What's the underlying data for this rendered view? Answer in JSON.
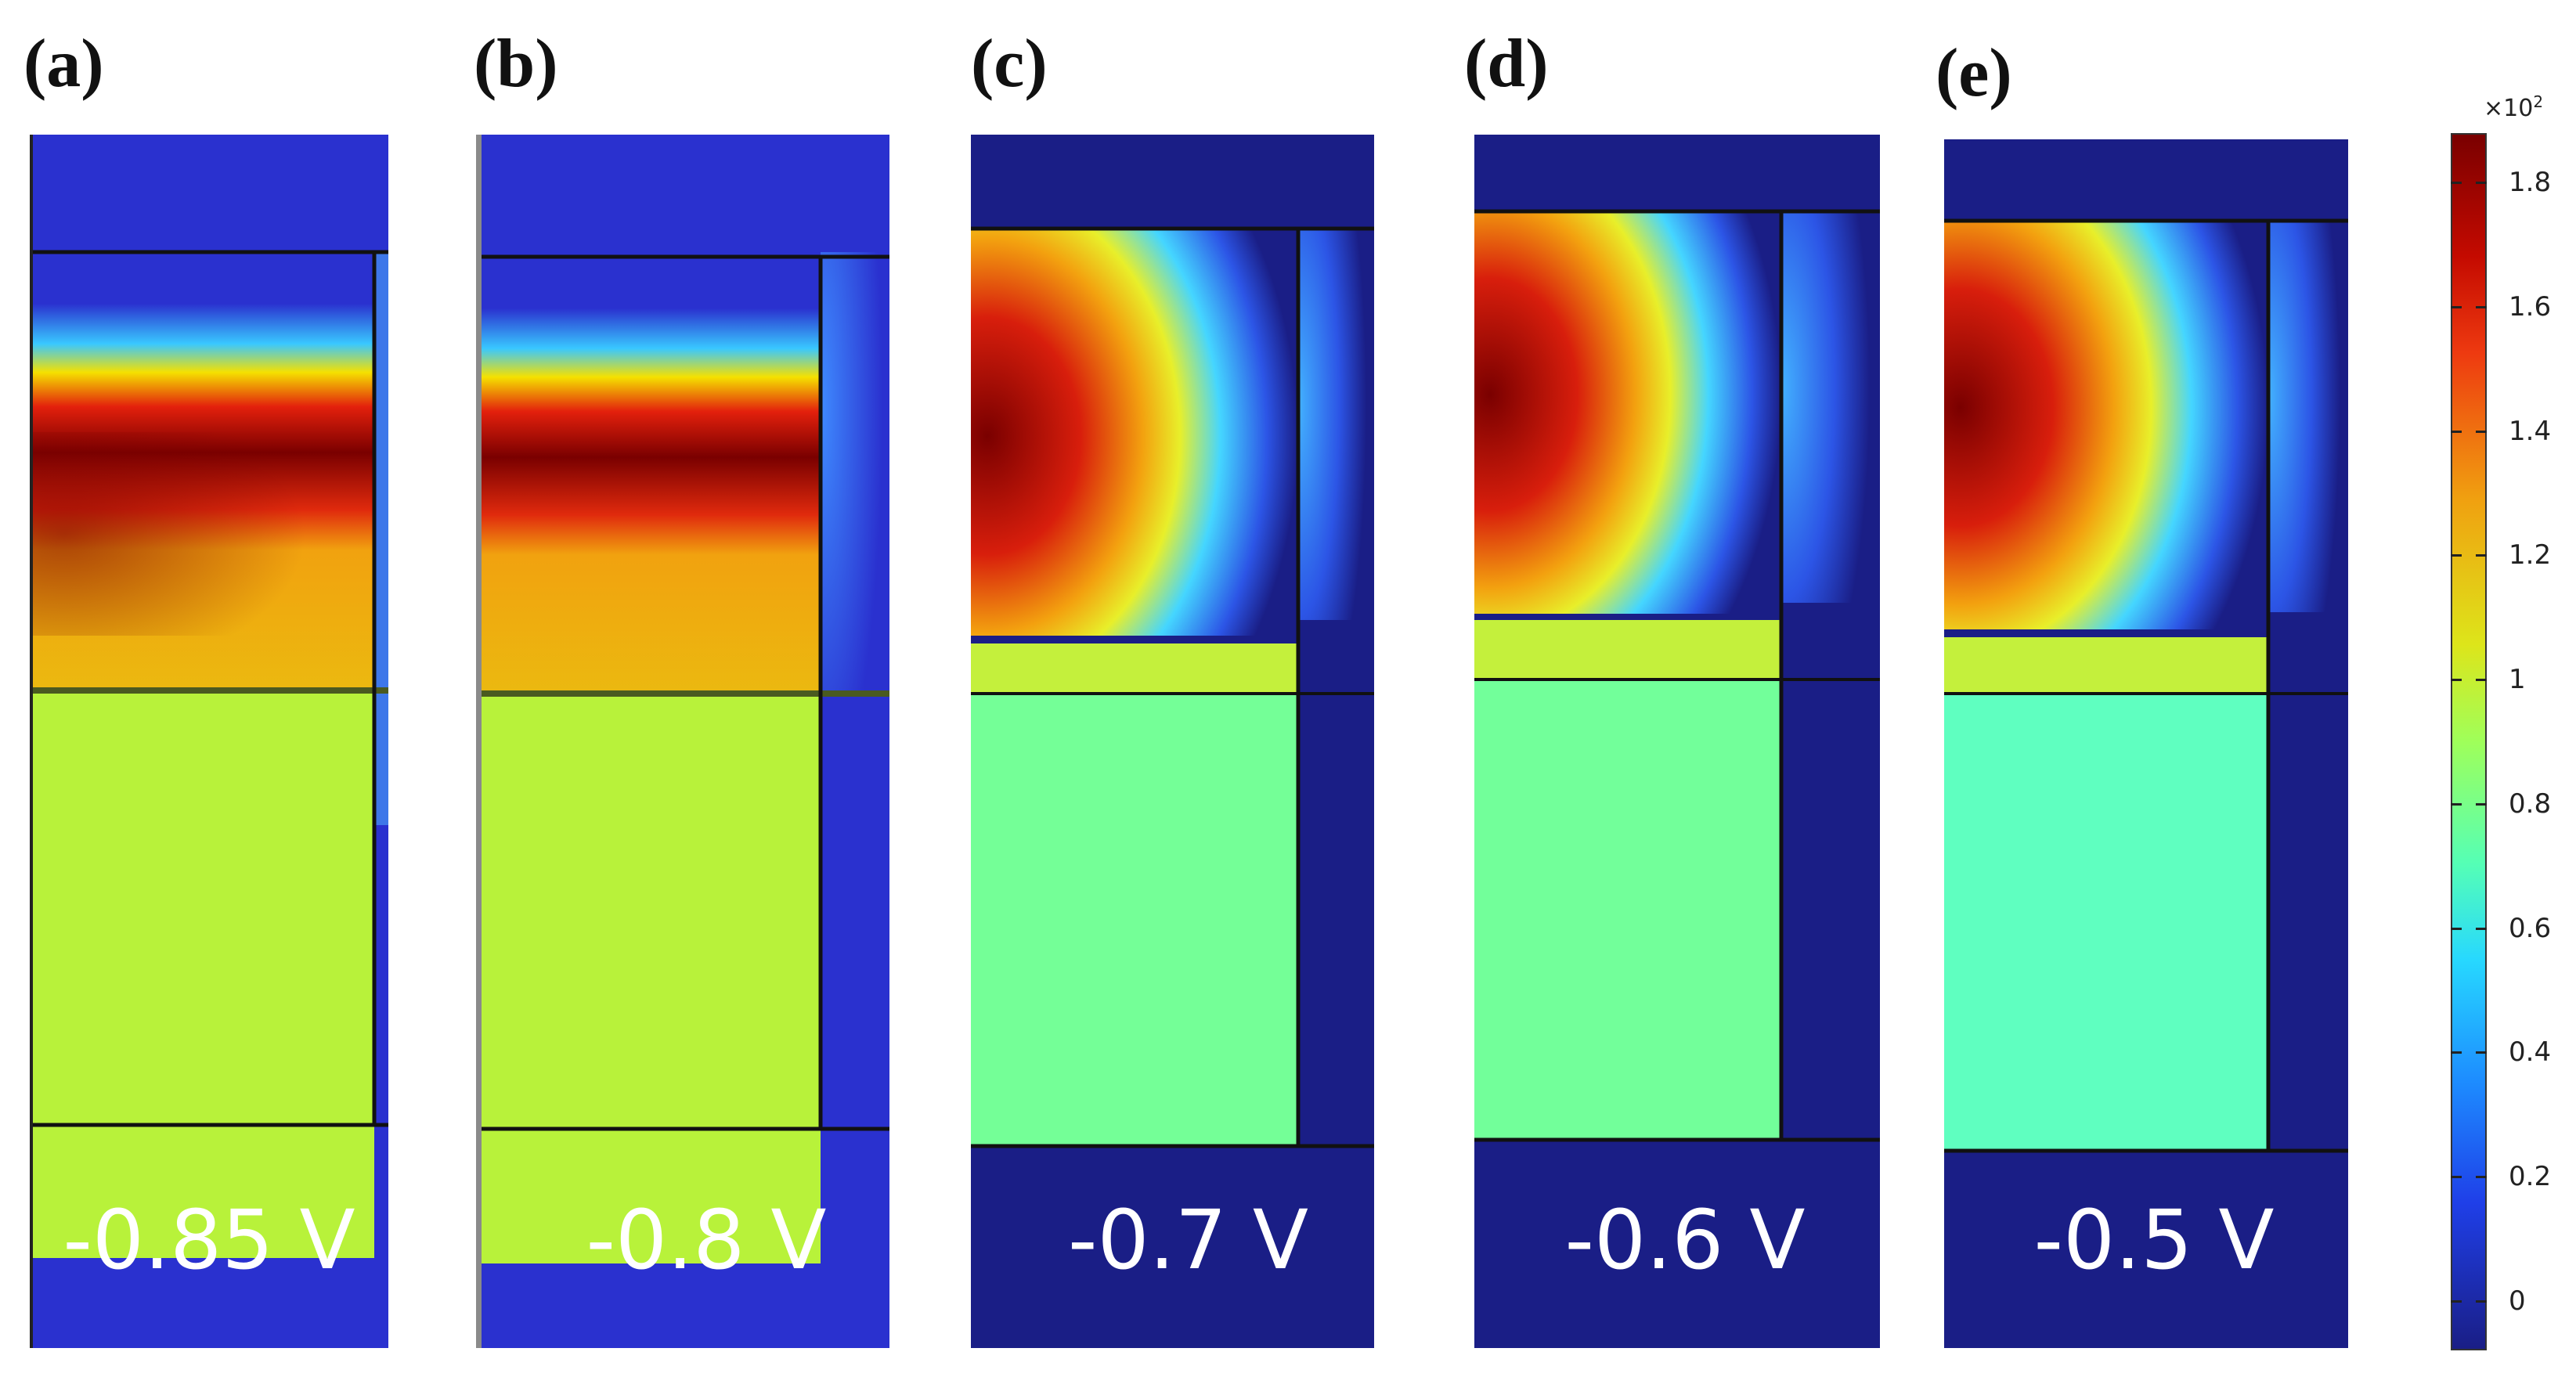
{
  "figure": {
    "panels": [
      {
        "label": "(a)",
        "voltage": "-0.85 V",
        "bg": "#2a31cf",
        "upper": "#b8f23a",
        "hot": true
      },
      {
        "label": "(b)",
        "voltage": "-0.8 V",
        "bg": "#2a31cf",
        "upper": "#b8f23a",
        "hot": true
      },
      {
        "label": "(c)",
        "voltage": "-0.7 V",
        "bg": "#1a1e86",
        "upper": "#74ff97",
        "hot": false
      },
      {
        "label": "(d)",
        "voltage": "-0.6 V",
        "bg": "#1a1e86",
        "upper": "#72ff9a",
        "hot": false
      },
      {
        "label": "(e)",
        "voltage": "-0.5 V",
        "bg": "#1a1e86",
        "upper": "#5fffc0",
        "hot": false
      }
    ]
  },
  "colorbar": {
    "multiplier": "×10",
    "exponent": "2",
    "ticks": [
      "1.8",
      "1.6",
      "1.4",
      "1.2",
      "1",
      "0.8",
      "0.6",
      "0.4",
      "0.2",
      "0"
    ],
    "tick_values": [
      1.8,
      1.6,
      1.4,
      1.2,
      1.0,
      0.8,
      0.6,
      0.4,
      0.2,
      0.0
    ],
    "min": -0.08,
    "max": 1.88
  }
}
